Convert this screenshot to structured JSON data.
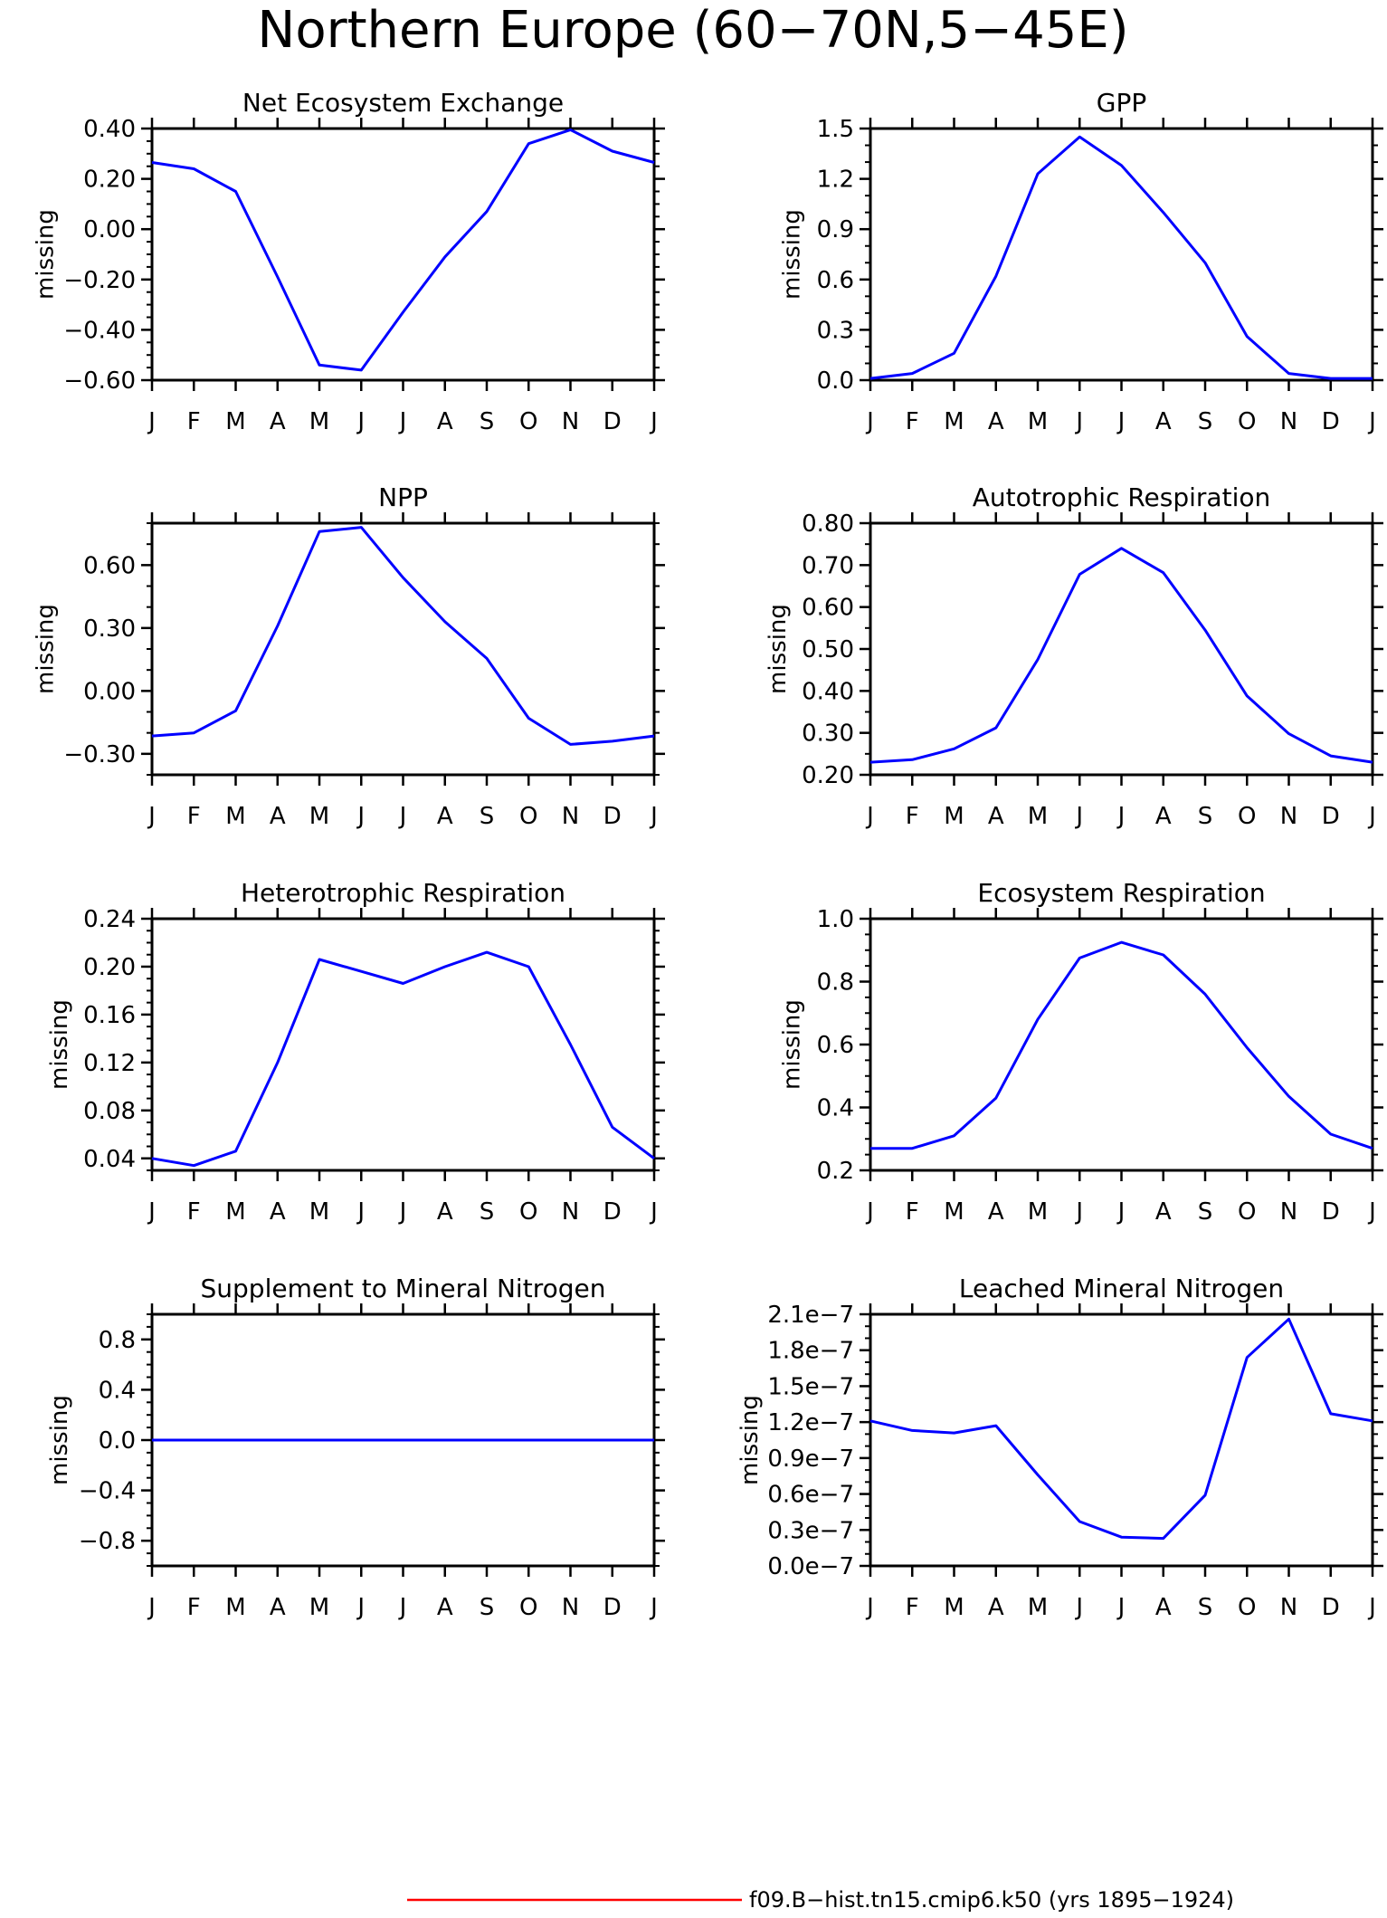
{
  "title": "Northern Europe (60−70N,5−45E)",
  "legend": {
    "label": "f09.B−hist.tn15.cmip6.k50 (yrs 1895−1924)",
    "color": "#ff0000"
  },
  "series_color": "#0000ff",
  "chart_data": [
    {
      "type": "line",
      "title": "Net Ecosystem Exchange",
      "ylabel": "missing",
      "categories": [
        "J",
        "F",
        "M",
        "A",
        "M",
        "J",
        "J",
        "A",
        "S",
        "O",
        "N",
        "D",
        "J"
      ],
      "values": [
        0.265,
        0.24,
        0.15,
        -0.19,
        -0.54,
        -0.56,
        -0.33,
        -0.11,
        0.07,
        0.34,
        0.395,
        0.31,
        0.265
      ],
      "ylim": [
        -0.6,
        0.4
      ],
      "yticks": [
        -0.6,
        -0.4,
        -0.2,
        0.0,
        0.2,
        0.4
      ],
      "yticklabels": [
        "−0.60",
        "−0.40",
        "−0.20",
        "0.00",
        "0.20",
        "0.40"
      ],
      "yminor": 0.05
    },
    {
      "type": "line",
      "title": "GPP",
      "ylabel": "missing",
      "categories": [
        "J",
        "F",
        "M",
        "A",
        "M",
        "J",
        "J",
        "A",
        "S",
        "O",
        "N",
        "D",
        "J"
      ],
      "values": [
        0.01,
        0.04,
        0.16,
        0.62,
        1.23,
        1.45,
        1.28,
        1.0,
        0.7,
        0.26,
        0.04,
        0.01,
        0.01
      ],
      "ylim": [
        0.0,
        1.5
      ],
      "yticks": [
        0.0,
        0.3,
        0.6,
        0.9,
        1.2,
        1.5
      ],
      "yticklabels": [
        "0.0",
        "0.3",
        "0.6",
        "0.9",
        "1.2",
        "1.5"
      ],
      "yminor": 0.1
    },
    {
      "type": "line",
      "title": "NPP",
      "ylabel": "missing",
      "categories": [
        "J",
        "F",
        "M",
        "A",
        "M",
        "J",
        "J",
        "A",
        "S",
        "O",
        "N",
        "D",
        "J"
      ],
      "values": [
        -0.215,
        -0.2,
        -0.095,
        0.31,
        0.76,
        0.78,
        0.54,
        0.33,
        0.155,
        -0.13,
        -0.255,
        -0.24,
        -0.215
      ],
      "ylim": [
        -0.4,
        0.8
      ],
      "yticks": [
        -0.3,
        0.0,
        0.3,
        0.6
      ],
      "yticklabels": [
        "−0.30",
        "0.00",
        "0.30",
        "0.60"
      ],
      "yminor": 0.1
    },
    {
      "type": "line",
      "title": "Autotrophic Respiration",
      "ylabel": "missing",
      "categories": [
        "J",
        "F",
        "M",
        "A",
        "M",
        "J",
        "J",
        "A",
        "S",
        "O",
        "N",
        "D",
        "J"
      ],
      "values": [
        0.23,
        0.236,
        0.262,
        0.312,
        0.475,
        0.678,
        0.74,
        0.682,
        0.545,
        0.388,
        0.298,
        0.245,
        0.23
      ],
      "ylim": [
        0.2,
        0.8
      ],
      "yticks": [
        0.2,
        0.3,
        0.4,
        0.5,
        0.6,
        0.7,
        0.8
      ],
      "yticklabels": [
        "0.20",
        "0.30",
        "0.40",
        "0.50",
        "0.60",
        "0.70",
        "0.80"
      ],
      "yminor": 0.05
    },
    {
      "type": "line",
      "title": "Heterotrophic Respiration",
      "ylabel": "missing",
      "categories": [
        "J",
        "F",
        "M",
        "A",
        "M",
        "J",
        "J",
        "A",
        "S",
        "O",
        "N",
        "D",
        "J"
      ],
      "values": [
        0.04,
        0.034,
        0.046,
        0.12,
        0.206,
        0.196,
        0.186,
        0.2,
        0.212,
        0.2,
        0.135,
        0.066,
        0.04
      ],
      "ylim": [
        0.03,
        0.24
      ],
      "yticks": [
        0.04,
        0.08,
        0.12,
        0.16,
        0.2,
        0.24
      ],
      "yticklabels": [
        "0.04",
        "0.08",
        "0.12",
        "0.16",
        "0.20",
        "0.24"
      ],
      "yminor": 0.01
    },
    {
      "type": "line",
      "title": "Ecosystem Respiration",
      "ylabel": "missing",
      "categories": [
        "J",
        "F",
        "M",
        "A",
        "M",
        "J",
        "J",
        "A",
        "S",
        "O",
        "N",
        "D",
        "J"
      ],
      "values": [
        0.27,
        0.27,
        0.31,
        0.43,
        0.68,
        0.875,
        0.925,
        0.885,
        0.76,
        0.59,
        0.435,
        0.315,
        0.27
      ],
      "ylim": [
        0.2,
        1.0
      ],
      "yticks": [
        0.2,
        0.4,
        0.6,
        0.8,
        1.0
      ],
      "yticklabels": [
        "0.2",
        "0.4",
        "0.6",
        "0.8",
        "1.0"
      ],
      "yminor": 0.05
    },
    {
      "type": "line",
      "title": "Supplement to Mineral Nitrogen",
      "ylabel": "missing",
      "categories": [
        "J",
        "F",
        "M",
        "A",
        "M",
        "J",
        "J",
        "A",
        "S",
        "O",
        "N",
        "D",
        "J"
      ],
      "values": [
        0,
        0,
        0,
        0,
        0,
        0,
        0,
        0,
        0,
        0,
        0,
        0,
        0
      ],
      "ylim": [
        -1.0,
        1.0
      ],
      "yticks": [
        -0.8,
        -0.4,
        0.0,
        0.4,
        0.8
      ],
      "yticklabels": [
        "−0.8",
        "−0.4",
        "0.0",
        "0.4",
        "0.8"
      ],
      "yminor": 0.1
    },
    {
      "type": "line",
      "title": "Leached Mineral Nitrogen",
      "ylabel": "missing",
      "categories": [
        "J",
        "F",
        "M",
        "A",
        "M",
        "J",
        "J",
        "A",
        "S",
        "O",
        "N",
        "D",
        "J"
      ],
      "values": [
        1.21e-07,
        1.13e-07,
        1.11e-07,
        1.17e-07,
        7.6e-08,
        3.7e-08,
        2.4e-08,
        2.3e-08,
        5.9e-08,
        1.74e-07,
        2.06e-07,
        1.27e-07,
        1.21e-07
      ],
      "ylim": [
        0.0,
        2.1e-07
      ],
      "yticks": [
        0.0,
        3e-08,
        6e-08,
        9e-08,
        1.2e-07,
        1.5e-07,
        1.8e-07,
        2.1e-07
      ],
      "yticklabels": [
        "0.0e−7",
        "0.3e−7",
        "0.6e−7",
        "0.9e−7",
        "1.2e−7",
        "1.5e−7",
        "1.8e−7",
        "2.1e−7"
      ],
      "yminor": 1e-08
    }
  ]
}
